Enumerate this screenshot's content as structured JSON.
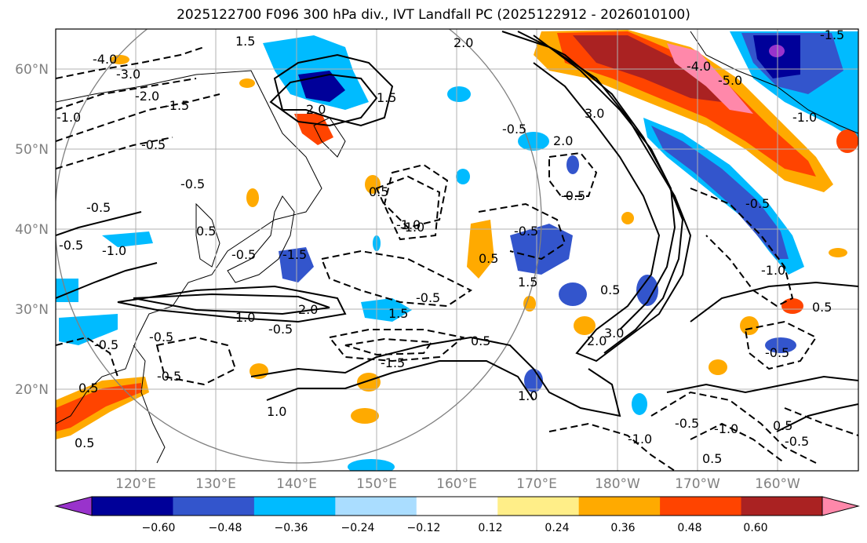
{
  "title": "2025122700 F096 300 hPa div., IVT Landfall PC (2025122912 - 2026010100)",
  "lat_labels": [
    "60°N",
    "50°N",
    "40°N",
    "30°N",
    "20°N"
  ],
  "lon_labels": [
    "120°E",
    "130°E",
    "140°E",
    "150°E",
    "160°E",
    "170°E",
    "180°W",
    "170°W",
    "160°W"
  ],
  "colorbar": {
    "tick_labels": [
      "−0.60",
      "−0.48",
      "−0.36",
      "−0.24",
      "−0.12",
      "0.12",
      "0.24",
      "0.36",
      "0.48",
      "0.60"
    ],
    "colors": [
      "#9933cc",
      "#000099",
      "#3355cc",
      "#00bbff",
      "#aaddff",
      "#ffffff",
      "#ffee88",
      "#ffaa00",
      "#ff4400",
      "#aa2222",
      "#ff88aa"
    ],
    "extend": "both"
  },
  "contour_labels": [
    "1.5",
    "-4.0",
    "-3.0",
    "-2.0",
    "-1.5",
    "-0.5",
    "-1.0",
    "2.0",
    "1.5",
    "2.0",
    "-0.5",
    "3.0",
    "-4.0",
    "-5.0",
    "-1.5",
    "-1.0",
    "2.0",
    "-0.5",
    "-0.5",
    "0.5",
    "-1.0",
    "0.5",
    "-0.5",
    "1.5",
    "-0.5",
    "-1.5",
    "2.0",
    "-0.5",
    "1.0",
    "-1.5",
    "1.5",
    "-1.0",
    "0.5",
    "2.0",
    "1.0",
    "3.0",
    "0.5",
    "-1.0",
    "-0.5",
    "0.5",
    "-0.5",
    "0.5",
    "-0.5",
    "-0.5",
    "-1.0",
    "0.5",
    "1.0",
    "-0.5",
    "-0.5",
    "-0.5",
    "0.5",
    "-1.0",
    "-0.5",
    "-1.0",
    "0.5",
    "-0.5",
    "0.5",
    "-0.5"
  ],
  "colors": {
    "axis_label": "#808080",
    "grid": "#b0b0b0",
    "contour": "#000000",
    "circle": "#808080"
  }
}
